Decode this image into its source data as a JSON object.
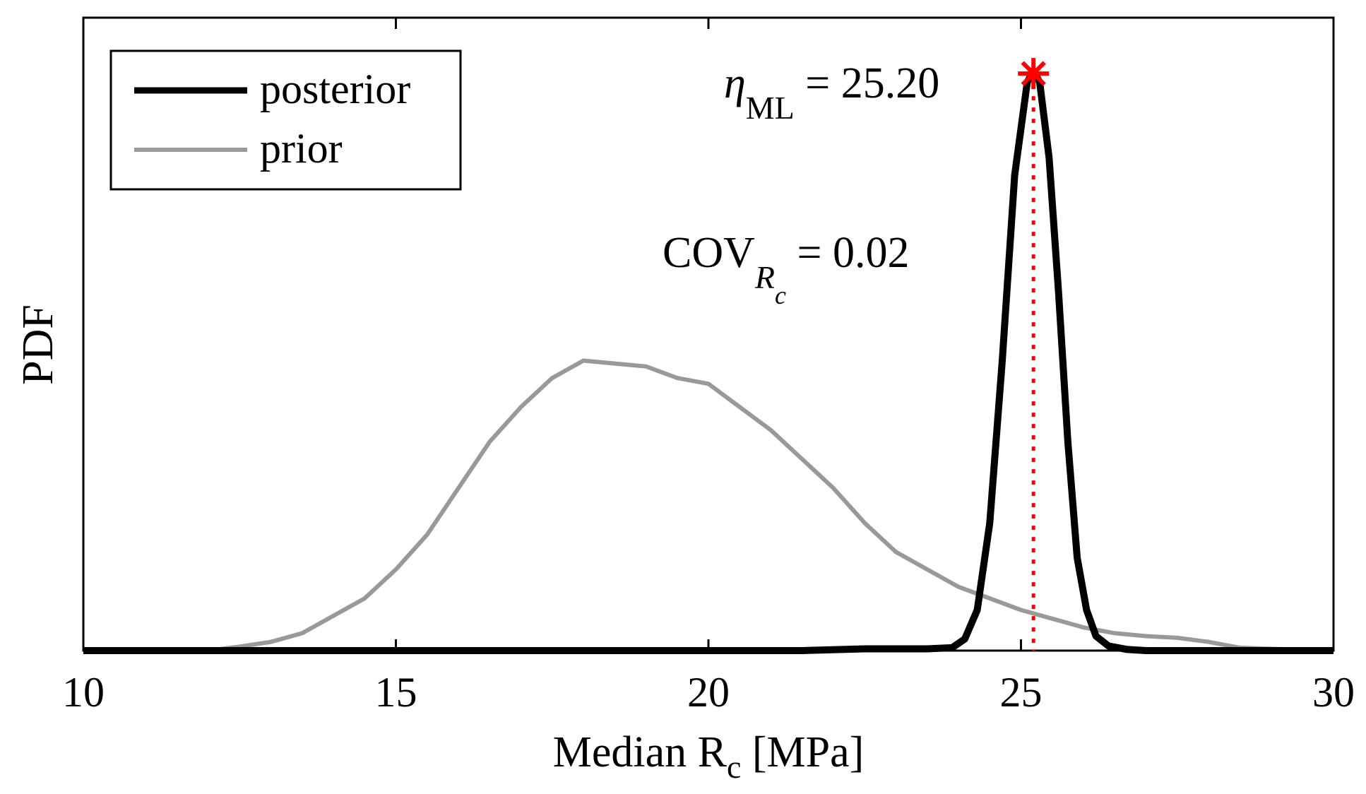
{
  "chart_data": {
    "type": "line",
    "title": "",
    "xlabel": {
      "main": "Median R",
      "sub": "c",
      "unit": " [MPa]"
    },
    "ylabel": "PDF",
    "xlim": [
      10,
      30
    ],
    "ylim": [
      0,
      1.0
    ],
    "xticks": [
      10,
      15,
      20,
      25,
      30
    ],
    "xtick_labels": [
      "10",
      "15",
      "20",
      "25",
      "30"
    ],
    "grid": false,
    "legend": {
      "placement": "top-left",
      "entries": [
        {
          "label": "posterior",
          "color": "#000000"
        },
        {
          "label": "prior",
          "color": "#999999"
        }
      ]
    },
    "series": [
      {
        "name": "posterior",
        "color": "#000000",
        "x": [
          10,
          12,
          14,
          16,
          18,
          20,
          21.5,
          22.5,
          23.5,
          23.9,
          24.1,
          24.3,
          24.5,
          24.7,
          24.9,
          25.1,
          25.2,
          25.3,
          25.45,
          25.6,
          25.75,
          25.9,
          26.05,
          26.2,
          26.4,
          26.7,
          27,
          28,
          29,
          30
        ],
        "y": [
          0,
          0,
          0,
          0,
          0,
          0,
          0,
          0.003,
          0.003,
          0.005,
          0.02,
          0.07,
          0.22,
          0.5,
          0.82,
          0.98,
          1.0,
          0.98,
          0.85,
          0.62,
          0.36,
          0.16,
          0.07,
          0.025,
          0.008,
          0.002,
          0,
          0,
          0,
          0
        ]
      },
      {
        "name": "prior",
        "color": "#999999",
        "x": [
          10,
          12,
          12.5,
          13,
          13.5,
          14,
          14.5,
          15,
          15.5,
          16,
          16.5,
          17,
          17.5,
          18,
          18.5,
          19,
          19.5,
          20,
          20.5,
          21,
          21.5,
          22,
          22.5,
          23,
          23.5,
          24,
          24.5,
          25,
          25.5,
          26,
          26.5,
          27,
          27.5,
          28,
          28.5,
          29,
          30
        ],
        "y": [
          0,
          0,
          0.007,
          0.015,
          0.03,
          0.06,
          0.09,
          0.14,
          0.2,
          0.28,
          0.36,
          0.42,
          0.47,
          0.5,
          0.495,
          0.49,
          0.47,
          0.46,
          0.42,
          0.38,
          0.33,
          0.28,
          0.22,
          0.17,
          0.14,
          0.11,
          0.09,
          0.07,
          0.055,
          0.04,
          0.03,
          0.025,
          0.022,
          0.015,
          0.005,
          0.003,
          0
        ]
      }
    ],
    "marker": {
      "x": 25.2,
      "y": 0.995,
      "symbol": "*",
      "color": "#ff0000"
    },
    "reference_line": {
      "x": 25.2,
      "style": "dotted",
      "color": "#ff0000"
    },
    "annotations": {
      "eta": {
        "symbol": "η",
        "sub": "ML",
        "text": " = 25.20"
      },
      "cov": {
        "main": "COV",
        "sub": "R",
        "subsub": "c",
        "text": " = 0.02"
      }
    }
  }
}
